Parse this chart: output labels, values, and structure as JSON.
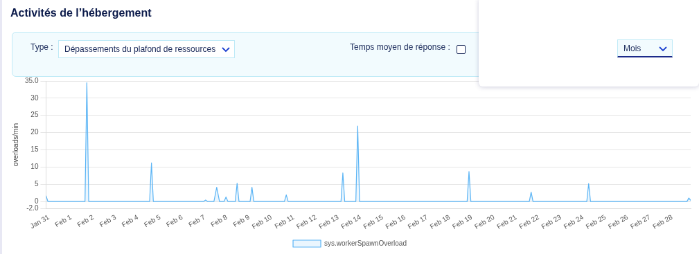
{
  "chart_data": {
    "type": "area",
    "title": "Activités de l’hébergement",
    "ylabel": "overloads/min",
    "annotations": [
      "Type :",
      "Dépassements du plafond de ressources",
      "Temps moyen de réponse :",
      "Mois"
    ],
    "x": [
      "--01-30T21:00",
      "--01-30T23:00",
      "--02-01T15:00",
      "--02-01T17:00",
      "--02-01T19:00",
      "--02-04T12:40",
      "--02-04T14:40",
      "--02-04T16:40",
      "--02-06T23:00",
      "--02-07T01:00",
      "--02-07T03:00",
      "--02-07T10:00",
      "--02-07T13:00",
      "--02-07T16:00",
      "--02-07T21:00",
      "--02-07T23:00",
      "--02-08T01:00",
      "--02-08T09:00",
      "--02-08T11:00",
      "--02-08T13:00",
      "--02-09T01:00",
      "--02-09T03:00",
      "--02-09T05:00",
      "--02-10T14:00",
      "--02-10T16:00",
      "--02-10T18:00",
      "--02-13T03:00",
      "--02-13T05:00",
      "--02-13T07:00",
      "--02-13T19:00",
      "--02-13T21:00",
      "--02-13T23:00",
      "--02-18T19:00",
      "--02-18T21:00",
      "--02-18T23:00",
      "--02-21T14:00",
      "--02-21T16:00",
      "--02-21T18:00",
      "--02-24T04:00",
      "--02-24T06:00",
      "--02-24T08:00",
      "--02-28T16:00",
      "--02-28T18:00",
      "--02-28T20:00"
    ],
    "series": [
      {
        "name": "sys.workerSpawnOverload",
        "color": "#5ab4f5",
        "values": [
          1.7,
          0,
          0,
          34.5,
          0,
          0,
          11.2,
          0,
          0,
          0.4,
          0,
          0,
          4.1,
          0,
          0,
          1.3,
          0,
          0,
          5.3,
          0,
          0,
          4.1,
          0,
          0,
          1.9,
          0,
          0,
          8.3,
          0,
          0,
          21.9,
          0,
          0,
          8.7,
          0,
          0,
          2.7,
          0,
          0,
          5.2,
          0,
          0,
          1.0,
          0.3
        ]
      }
    ],
    "xlim": [
      "--01-30T21:00",
      "--02-28T20:00"
    ],
    "xticks": [
      {
        "value": "--01-31",
        "label": "Jan 31"
      },
      {
        "value": "--02-01",
        "label": "Feb 1"
      },
      {
        "value": "--02-02",
        "label": "Feb 2"
      },
      {
        "value": "--02-03",
        "label": "Feb 3"
      },
      {
        "value": "--02-04",
        "label": "Feb 4"
      },
      {
        "value": "--02-05",
        "label": "Feb 5"
      },
      {
        "value": "--02-06",
        "label": "Feb 6"
      },
      {
        "value": "--02-07",
        "label": "Feb 7"
      },
      {
        "value": "--02-08",
        "label": "Feb 8"
      },
      {
        "value": "--02-09",
        "label": "Feb 9"
      },
      {
        "value": "--02-10",
        "label": "Feb 10"
      },
      {
        "value": "--02-11",
        "label": "Feb 11"
      },
      {
        "value": "--02-12",
        "label": "Feb 12"
      },
      {
        "value": "--02-13",
        "label": "Feb 13"
      },
      {
        "value": "--02-14",
        "label": "Feb 14"
      },
      {
        "value": "--02-15",
        "label": "Feb 15"
      },
      {
        "value": "--02-16",
        "label": "Feb 16"
      },
      {
        "value": "--02-17",
        "label": "Feb 17"
      },
      {
        "value": "--02-18",
        "label": "Feb 18"
      },
      {
        "value": "--02-19",
        "label": "Feb 19"
      },
      {
        "value": "--02-20",
        "label": "Feb 20"
      },
      {
        "value": "--02-21",
        "label": "Feb 21"
      },
      {
        "value": "--02-22",
        "label": "Feb 22"
      },
      {
        "value": "--02-23",
        "label": "Feb 23"
      },
      {
        "value": "--02-24",
        "label": "Feb 24"
      },
      {
        "value": "--02-25",
        "label": "Feb 25"
      },
      {
        "value": "--02-26",
        "label": "Feb 26"
      },
      {
        "value": "--02-27",
        "label": "Feb 27"
      },
      {
        "value": "--02-28",
        "label": "Feb 28"
      }
    ],
    "ylim": [
      -2,
      35
    ],
    "yticks": [
      {
        "value": -2,
        "label": "-2.0"
      },
      0,
      5,
      10,
      15,
      20,
      25,
      30,
      {
        "value": 35,
        "label": "35.0"
      }
    ],
    "grid": "y",
    "legend": "bottom",
    "marker": "none",
    "line_style": "solid"
  }
}
